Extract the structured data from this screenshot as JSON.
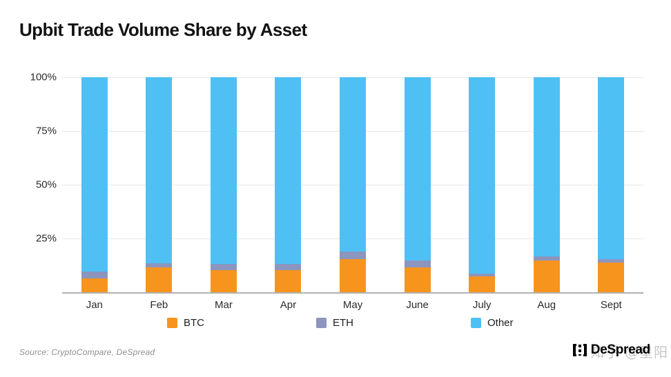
{
  "title": "Upbit Trade Volume Share by Asset",
  "source": "Source: CryptoCompare, DeSpread",
  "watermark": {
    "text": "知乎 @星阳"
  },
  "logo": {
    "text": "DeSpread"
  },
  "colors": {
    "btc": "#F7941E",
    "eth": "#8C95BE",
    "other": "#4FC0F4",
    "gridline": "#e7e7e7",
    "baseline": "#b0b0b0"
  },
  "chart_data": {
    "type": "bar",
    "stacked": true,
    "title": "Upbit Trade Volume Share by Asset",
    "xlabel": "",
    "ylabel": "",
    "ylim": [
      0,
      100
    ],
    "grid": true,
    "legend_position": "bottom",
    "y_ticks": [
      {
        "value": 100,
        "label": "100%"
      },
      {
        "value": 75,
        "label": "75%"
      },
      {
        "value": 50,
        "label": "50%"
      },
      {
        "value": 25,
        "label": "25%"
      }
    ],
    "categories": [
      "Jan",
      "Feb",
      "Mar",
      "Apr",
      "May",
      "June",
      "July",
      "Aug",
      "Sept"
    ],
    "series": [
      {
        "name": "BTC",
        "color": "#F7941E",
        "values": [
          6.5,
          11.6,
          10.3,
          10.4,
          15.5,
          11.4,
          7.4,
          14.9,
          13.8
        ]
      },
      {
        "name": "ETH",
        "color": "#8C95BE",
        "values": [
          3.0,
          1.9,
          2.9,
          2.8,
          3.4,
          3.2,
          1.2,
          1.8,
          1.6
        ]
      },
      {
        "name": "Other",
        "color": "#4FC0F4",
        "values": [
          90.5,
          86.5,
          86.8,
          86.8,
          81.1,
          85.4,
          91.4,
          83.3,
          84.6
        ]
      }
    ]
  }
}
